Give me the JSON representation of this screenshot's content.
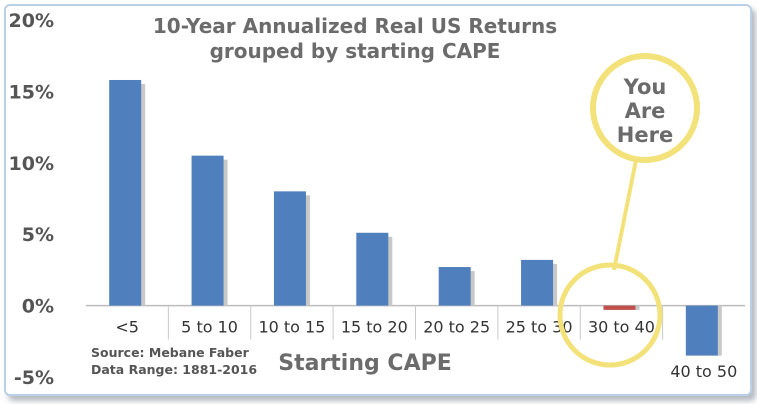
{
  "chart_data": {
    "type": "bar",
    "title": "10-Year Annualized Real US Returns",
    "subtitle": "grouped by starting CAPE",
    "xlabel": "Starting CAPE",
    "ylabel": "",
    "categories": [
      "<5",
      "5 to 10",
      "10 to 15",
      "15 to 20",
      "20 to 25",
      "25 to 30",
      "30 to 40",
      "40 to 50"
    ],
    "values": [
      15.8,
      10.5,
      8.0,
      5.1,
      2.7,
      3.2,
      -0.3,
      -3.5
    ],
    "ylim": [
      -5,
      20
    ],
    "yticks": [
      -5,
      0,
      5,
      10,
      15,
      20
    ],
    "ytick_labels": [
      "-5%",
      "0%",
      "5%",
      "10%",
      "15%",
      "20%"
    ],
    "grid": false,
    "colors": {
      "bar": "#4f7fbd",
      "highlight_bar": "#c0504d",
      "shadow": "#c8c8c8",
      "callout": "#f3e27a"
    },
    "highlight_index": 6,
    "source_lines": [
      "Source: Mebane Faber",
      "Data Range: 1881-2016"
    ],
    "callout_lines": [
      "You",
      "Are",
      "Here"
    ]
  }
}
